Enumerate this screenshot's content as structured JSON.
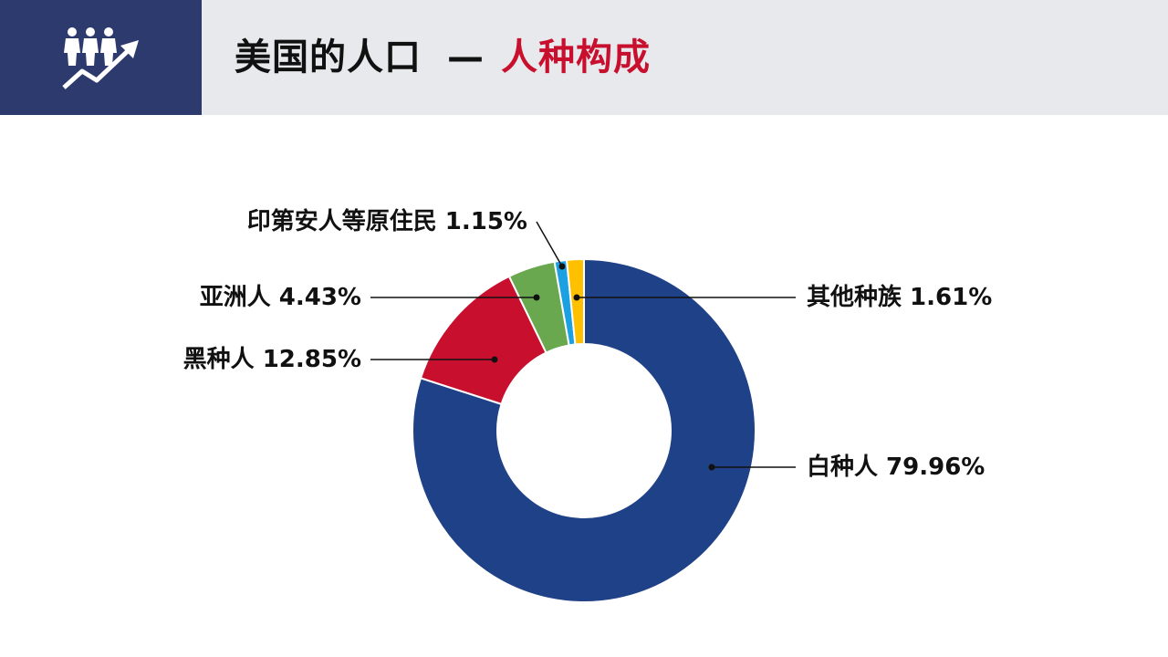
{
  "header": {
    "title_main": "美国的人口",
    "title_dash": "—",
    "title_accent": "人种构成",
    "logo_icon": "people-growth-icon"
  },
  "colors": {
    "header_bg": "#e7e9ec",
    "logo_bg": "#2c3a6e",
    "accent": "#c8102e"
  },
  "chart_data": {
    "type": "pie",
    "donut": true,
    "start": "12 o'clock",
    "direction": "clockwise",
    "slices": [
      {
        "label": "白种人",
        "value": 79.96,
        "text": "79.96%",
        "color": "#1f4188"
      },
      {
        "label": "黑种人",
        "value": 12.85,
        "text": "12.85%",
        "color": "#c8102e"
      },
      {
        "label": "亚洲人",
        "value": 4.43,
        "text": "4.43%",
        "color": "#6aa84f"
      },
      {
        "label": "印第安人等原住民",
        "value": 1.15,
        "text": "1.15%",
        "color": "#1ba1e2"
      },
      {
        "label": "其他种族",
        "value": 1.61,
        "text": "1.61%",
        "color": "#ffc000"
      }
    ]
  }
}
